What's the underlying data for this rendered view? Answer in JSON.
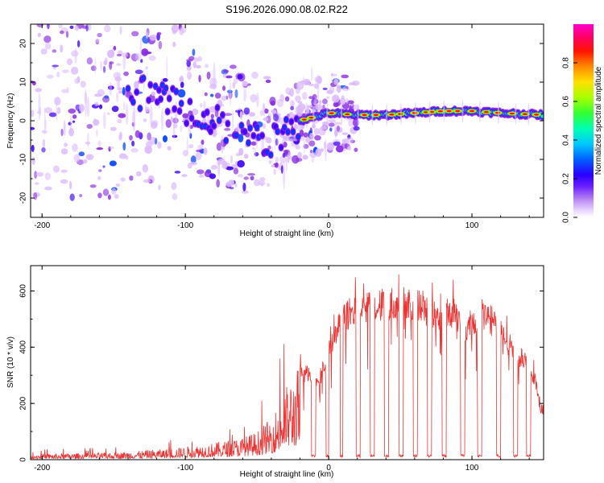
{
  "chart_data": [
    {
      "type": "heatmap",
      "title": "S196.2026.090.08.02.R22",
      "xlabel": "Height of straight line (km)",
      "ylabel": "Frequency (Hz)",
      "xlim": [
        -208,
        150
      ],
      "ylim": [
        -25,
        25
      ],
      "xticks": [
        -200,
        -100,
        0,
        100
      ],
      "yticks": [
        -20,
        -10,
        0,
        10,
        20
      ],
      "colorbar": {
        "label": "Normalized spectral amplitude",
        "range": [
          0,
          1
        ],
        "ticks": [
          0.0,
          0.2,
          0.4,
          0.6,
          0.8
        ],
        "colors": [
          "#ffffff",
          "#ddbbff",
          "#8a2be2",
          "#3f00ff",
          "#0040ff",
          "#00c8ff",
          "#00ff9a",
          "#33ff00",
          "#ccff00",
          "#ffaa00",
          "#ff0000",
          "#ff00aa"
        ]
      },
      "ridge": {
        "x": [
          -208,
          -150,
          -120,
          -100,
          -80,
          -60,
          -40,
          -20,
          0,
          20,
          40,
          60,
          80,
          100,
          120,
          150
        ],
        "freq": [
          5,
          5,
          8,
          3,
          0,
          -3,
          -5,
          0,
          2,
          1.5,
          1.5,
          2,
          2.5,
          2.5,
          2,
          1.5
        ]
      }
    },
    {
      "type": "line",
      "xlabel": "Height of straight line (km)",
      "ylabel": "SNR (10 * v/v)",
      "xlim": [
        -208,
        150
      ],
      "ylim": [
        0,
        690
      ],
      "xticks": [
        -200,
        -100,
        0,
        100
      ],
      "yticks": [
        0,
        200,
        400,
        600
      ],
      "series": [
        {
          "name": "SNR",
          "color": "#ee3333",
          "envelope_x": [
            -208,
            -150,
            -110,
            -80,
            -60,
            -50,
            -40,
            -35,
            -30,
            -22,
            -15,
            -10,
            -5,
            0,
            5,
            10,
            15,
            20,
            30,
            40,
            50,
            55,
            60,
            70,
            75,
            80,
            85,
            90,
            95,
            100,
            105,
            110,
            115,
            120,
            125,
            130,
            135,
            140,
            145,
            148
          ],
          "envelope_y": [
            20,
            25,
            40,
            60,
            80,
            100,
            150,
            200,
            260,
            330,
            340,
            320,
            340,
            420,
            500,
            550,
            580,
            590,
            600,
            615,
            625,
            625,
            620,
            610,
            560,
            560,
            590,
            560,
            510,
            540,
            580,
            570,
            540,
            500,
            460,
            430,
            400,
            360,
            300,
            200
          ],
          "dropouts": [
            [
              -12,
              -9
            ],
            [
              -2,
              0
            ],
            [
              8,
              10
            ],
            [
              19,
              22
            ],
            [
              29,
              32
            ],
            [
              39,
              42
            ],
            [
              49,
              52
            ],
            [
              59,
              62
            ],
            [
              69,
              72
            ],
            [
              79,
              82
            ],
            [
              92,
              95
            ],
            [
              104,
              107
            ],
            [
              117,
              120
            ],
            [
              129,
              132
            ],
            [
              138,
              141
            ]
          ]
        }
      ]
    }
  ]
}
